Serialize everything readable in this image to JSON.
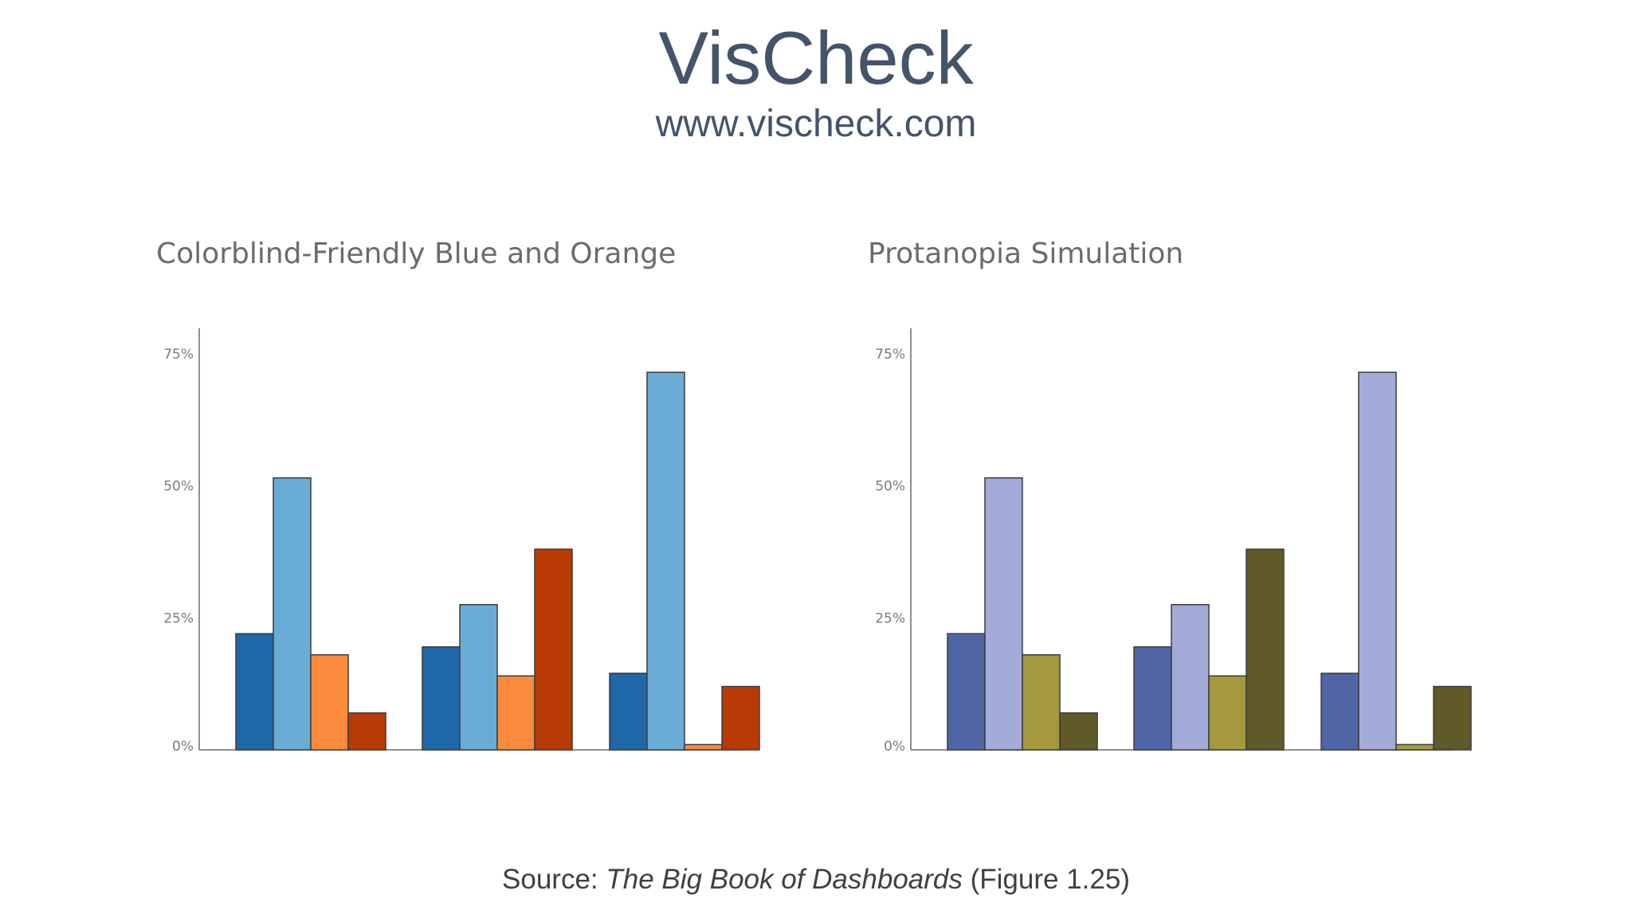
{
  "header": {
    "title": "VisCheck",
    "url": "www.vischeck.com"
  },
  "footer": {
    "source_prefix": "Source: ",
    "book_title": "The Big Book of Dashboards",
    "figure_ref": " (Figure 1.25)"
  },
  "chart_data": [
    {
      "type": "bar",
      "title": "Colorblind-Friendly Blue and Orange",
      "xlabel": "",
      "ylabel": "",
      "ylim": [
        0,
        0.8
      ],
      "yticks": [
        "0%",
        "25%",
        "50%",
        "75%"
      ],
      "ytick_values": [
        0,
        0.25,
        0.5,
        0.75
      ],
      "categories": [
        "",
        "",
        ""
      ],
      "series": [
        {
          "color": "#1f68a7",
          "values": [
            0.22,
            0.195,
            0.145
          ]
        },
        {
          "color": "#69add6",
          "values": [
            0.515,
            0.275,
            0.715
          ]
        },
        {
          "color": "#fb8b3c",
          "values": [
            0.18,
            0.14,
            0.01
          ]
        },
        {
          "color": "#b83a05",
          "values": [
            0.07,
            0.38,
            0.12
          ]
        }
      ],
      "grid": false,
      "legend": "none"
    },
    {
      "type": "bar",
      "title": "Protanopia Simulation",
      "xlabel": "",
      "ylabel": "",
      "ylim": [
        0,
        0.8
      ],
      "yticks": [
        "0%",
        "25%",
        "50%",
        "75%"
      ],
      "ytick_values": [
        0,
        0.25,
        0.5,
        0.75
      ],
      "categories": [
        "",
        "",
        ""
      ],
      "series": [
        {
          "color": "#5065a6",
          "values": [
            0.22,
            0.195,
            0.145
          ]
        },
        {
          "color": "#a3abd8",
          "values": [
            0.515,
            0.275,
            0.715
          ]
        },
        {
          "color": "#a49a3d",
          "values": [
            0.18,
            0.14,
            0.01
          ]
        },
        {
          "color": "#5f5a28",
          "values": [
            0.07,
            0.38,
            0.12
          ]
        }
      ],
      "grid": false,
      "legend": "none"
    }
  ]
}
